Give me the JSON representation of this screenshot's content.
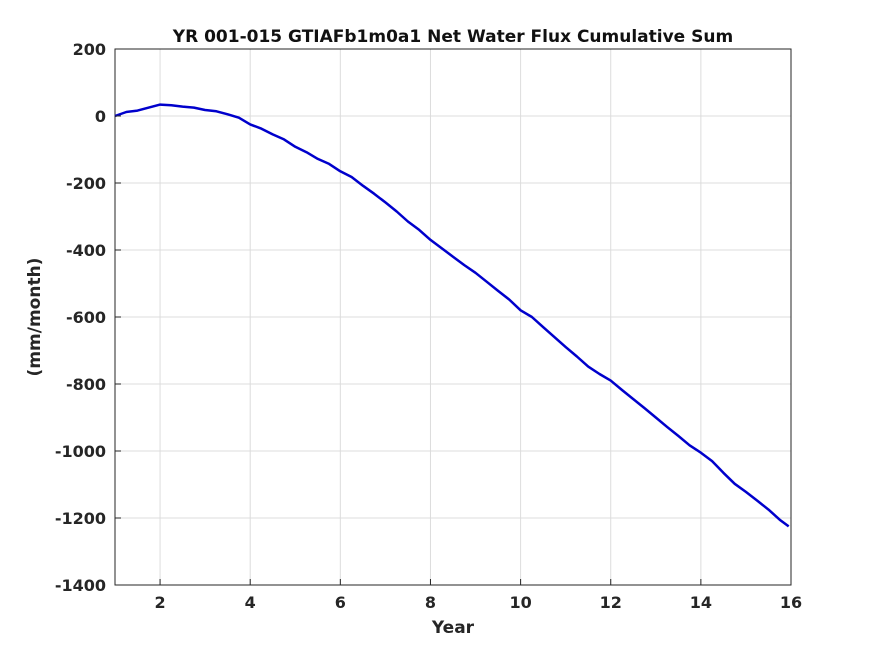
{
  "chart_data": {
    "type": "line",
    "title": "YR 001-015 GTIAFb1m0a1 Net Water Flux Cumulative Sum",
    "xlabel": "Year",
    "ylabel": "(mm/month)",
    "xlim": [
      1,
      16
    ],
    "ylim": [
      -1400,
      200
    ],
    "xticks": [
      "2",
      "4",
      "6",
      "8",
      "10",
      "12",
      "14",
      "16"
    ],
    "yticks": [
      "200",
      "0",
      "-200",
      "-400",
      "-600",
      "-800",
      "-1000",
      "-1200",
      "-1400"
    ],
    "grid": true,
    "series": [
      {
        "color": "#0000cc",
        "x": [
          1.0,
          1.25,
          1.5,
          1.75,
          2.0,
          2.25,
          2.5,
          2.75,
          3.0,
          3.25,
          3.5,
          3.75,
          4.0,
          4.25,
          4.5,
          4.75,
          5.0,
          5.25,
          5.5,
          5.75,
          6.0,
          6.25,
          6.5,
          6.75,
          7.0,
          7.25,
          7.5,
          7.75,
          8.0,
          8.25,
          8.5,
          8.75,
          9.0,
          9.25,
          9.5,
          9.75,
          10.0,
          10.25,
          10.5,
          10.75,
          11.0,
          11.25,
          11.5,
          11.75,
          12.0,
          12.25,
          12.5,
          12.75,
          13.0,
          13.25,
          13.5,
          13.75,
          14.0,
          14.25,
          14.5,
          14.75,
          15.0,
          15.25,
          15.5,
          15.75,
          15.95
        ],
        "y": [
          0,
          12,
          16,
          25,
          34,
          32,
          28,
          25,
          18,
          14,
          5,
          -5,
          -25,
          -38,
          -55,
          -70,
          -92,
          -108,
          -128,
          -143,
          -165,
          -182,
          -208,
          -232,
          -258,
          -285,
          -315,
          -340,
          -370,
          -395,
          -420,
          -445,
          -468,
          -495,
          -522,
          -548,
          -580,
          -600,
          -630,
          -660,
          -690,
          -718,
          -748,
          -770,
          -790,
          -818,
          -845,
          -872,
          -900,
          -928,
          -955,
          -983,
          -1005,
          -1030,
          -1065,
          -1098,
          -1122,
          -1148,
          -1175,
          -1205,
          -1225
        ]
      }
    ]
  }
}
